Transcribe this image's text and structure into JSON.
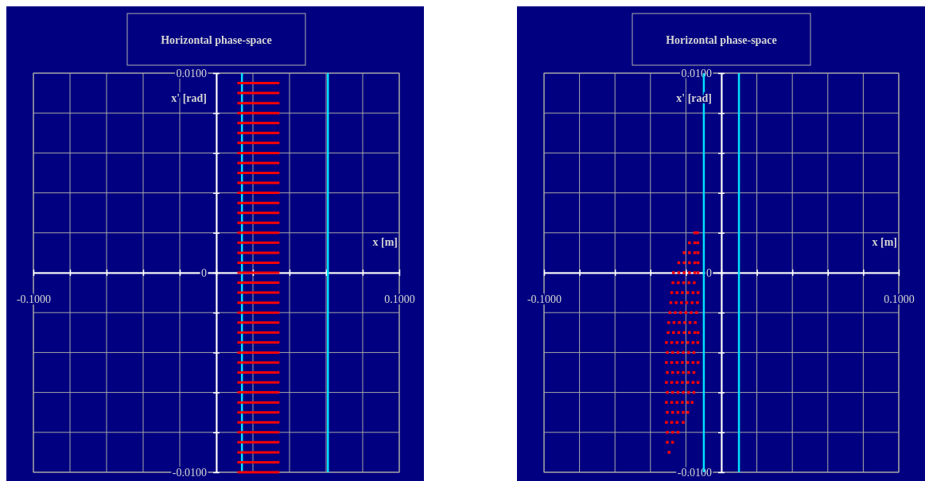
{
  "chart_data": [
    {
      "type": "line",
      "title": "Horizontal phase-space",
      "xlabel": "x [m]",
      "ylabel": "x' [rad]",
      "xlim": [
        -0.1,
        0.1
      ],
      "ylim": [
        -0.01,
        0.01
      ],
      "xticks": [
        {
          "value": -0.1,
          "label": "-0.1000"
        },
        {
          "value": -0.08,
          "label": null
        },
        {
          "value": -0.06,
          "label": null
        },
        {
          "value": -0.04,
          "label": null
        },
        {
          "value": -0.02,
          "label": null
        },
        {
          "value": 0,
          "label": null
        },
        {
          "value": 0.02,
          "label": null
        },
        {
          "value": 0.04,
          "label": null
        },
        {
          "value": 0.06,
          "label": null
        },
        {
          "value": 0.08,
          "label": null
        },
        {
          "value": 0.1,
          "label": "0.1000"
        }
      ],
      "yticks": [
        {
          "value": -0.01,
          "label": "-0.0100"
        },
        {
          "value": -0.008,
          "label": null
        },
        {
          "value": -0.006,
          "label": null
        },
        {
          "value": -0.004,
          "label": null
        },
        {
          "value": -0.002,
          "label": null
        },
        {
          "value": 0,
          "label": "0"
        },
        {
          "value": 0.002,
          "label": null
        },
        {
          "value": 0.004,
          "label": null
        },
        {
          "value": 0.006,
          "label": null
        },
        {
          "value": 0.008,
          "label": null
        },
        {
          "value": 0.01,
          "label": "0.0100"
        }
      ],
      "grid": true,
      "marker": "none",
      "line_style": "solid",
      "ref_lines": [
        {
          "axis": "x",
          "value": 0.014,
          "color": "#00e0ff"
        },
        {
          "axis": "x",
          "value": 0.061,
          "color": "#00e0ff"
        }
      ],
      "series": [
        {
          "color": "#ff0000",
          "x": [
            0.0115,
            0.0345
          ],
          "values": [
            0.0095,
            0.0095
          ]
        },
        {
          "color": "#ff0000",
          "x": [
            0.0115,
            0.0345
          ],
          "values": [
            0.009,
            0.009
          ]
        },
        {
          "color": "#ff0000",
          "x": [
            0.0115,
            0.0345
          ],
          "values": [
            0.0085,
            0.0085
          ]
        },
        {
          "color": "#ff0000",
          "x": [
            0.0115,
            0.0345
          ],
          "values": [
            0.008,
            0.008
          ]
        },
        {
          "color": "#ff0000",
          "x": [
            0.0115,
            0.0345
          ],
          "values": [
            0.0075,
            0.0075
          ]
        },
        {
          "color": "#ff0000",
          "x": [
            0.0115,
            0.0345
          ],
          "values": [
            0.007,
            0.007
          ]
        },
        {
          "color": "#ff0000",
          "x": [
            0.0115,
            0.0345
          ],
          "values": [
            0.0065,
            0.0065
          ]
        },
        {
          "color": "#ff0000",
          "x": [
            0.0115,
            0.0345
          ],
          "values": [
            0.006,
            0.006
          ]
        },
        {
          "color": "#ff0000",
          "x": [
            0.0115,
            0.0345
          ],
          "values": [
            0.0055,
            0.0055
          ]
        },
        {
          "color": "#ff0000",
          "x": [
            0.0115,
            0.0345
          ],
          "values": [
            0.005,
            0.005
          ]
        },
        {
          "color": "#ff0000",
          "x": [
            0.0115,
            0.0345
          ],
          "values": [
            0.0045,
            0.0045
          ]
        },
        {
          "color": "#ff0000",
          "x": [
            0.0115,
            0.0345
          ],
          "values": [
            0.004,
            0.004
          ]
        },
        {
          "color": "#ff0000",
          "x": [
            0.0115,
            0.0345
          ],
          "values": [
            0.0035,
            0.0035
          ]
        },
        {
          "color": "#ff0000",
          "x": [
            0.0115,
            0.0345
          ],
          "values": [
            0.003,
            0.003
          ]
        },
        {
          "color": "#ff0000",
          "x": [
            0.0115,
            0.0345
          ],
          "values": [
            0.0025,
            0.0025
          ]
        },
        {
          "color": "#ff0000",
          "x": [
            0.0115,
            0.0345
          ],
          "values": [
            0.002,
            0.002
          ]
        },
        {
          "color": "#ff0000",
          "x": [
            0.0115,
            0.0345
          ],
          "values": [
            0.0015,
            0.0015
          ]
        },
        {
          "color": "#ff0000",
          "x": [
            0.0115,
            0.0345
          ],
          "values": [
            0.001,
            0.001
          ]
        },
        {
          "color": "#ff0000",
          "x": [
            0.0115,
            0.0345
          ],
          "values": [
            0.0005,
            0.0005
          ]
        },
        {
          "color": "#ff0000",
          "x": [
            0.0115,
            0.0345
          ],
          "values": [
            0,
            0
          ]
        },
        {
          "color": "#ff0000",
          "x": [
            0.0115,
            0.0345
          ],
          "values": [
            -0.0005,
            -0.0005
          ]
        },
        {
          "color": "#ff0000",
          "x": [
            0.0115,
            0.0345
          ],
          "values": [
            -0.001,
            -0.001
          ]
        },
        {
          "color": "#ff0000",
          "x": [
            0.0115,
            0.0345
          ],
          "values": [
            -0.0015,
            -0.0015
          ]
        },
        {
          "color": "#ff0000",
          "x": [
            0.0115,
            0.0345
          ],
          "values": [
            -0.002,
            -0.002
          ]
        },
        {
          "color": "#ff0000",
          "x": [
            0.0115,
            0.0345
          ],
          "values": [
            -0.0025,
            -0.0025
          ]
        },
        {
          "color": "#ff0000",
          "x": [
            0.0115,
            0.0345
          ],
          "values": [
            -0.003,
            -0.003
          ]
        },
        {
          "color": "#ff0000",
          "x": [
            0.0115,
            0.0345
          ],
          "values": [
            -0.0035,
            -0.0035
          ]
        },
        {
          "color": "#ff0000",
          "x": [
            0.0115,
            0.0345
          ],
          "values": [
            -0.004,
            -0.004
          ]
        },
        {
          "color": "#ff0000",
          "x": [
            0.0115,
            0.0345
          ],
          "values": [
            -0.0045,
            -0.0045
          ]
        },
        {
          "color": "#ff0000",
          "x": [
            0.0115,
            0.0345
          ],
          "values": [
            -0.005,
            -0.005
          ]
        },
        {
          "color": "#ff0000",
          "x": [
            0.0115,
            0.0345
          ],
          "values": [
            -0.0055,
            -0.0055
          ]
        },
        {
          "color": "#ff0000",
          "x": [
            0.0115,
            0.0345
          ],
          "values": [
            -0.006,
            -0.006
          ]
        },
        {
          "color": "#ff0000",
          "x": [
            0.0115,
            0.0345
          ],
          "values": [
            -0.0065,
            -0.0065
          ]
        },
        {
          "color": "#ff0000",
          "x": [
            0.0115,
            0.0345
          ],
          "values": [
            -0.007,
            -0.007
          ]
        },
        {
          "color": "#ff0000",
          "x": [
            0.0115,
            0.0345
          ],
          "values": [
            -0.0075,
            -0.0075
          ]
        },
        {
          "color": "#ff0000",
          "x": [
            0.0115,
            0.0345
          ],
          "values": [
            -0.008,
            -0.008
          ]
        },
        {
          "color": "#ff0000",
          "x": [
            0.0115,
            0.0345
          ],
          "values": [
            -0.0085,
            -0.0085
          ]
        },
        {
          "color": "#ff0000",
          "x": [
            0.0115,
            0.0345
          ],
          "values": [
            -0.009,
            -0.009
          ]
        },
        {
          "color": "#ff0000",
          "x": [
            0.0115,
            0.0345
          ],
          "values": [
            -0.0095,
            -0.0095
          ]
        },
        {
          "color": "#ff0000",
          "x": [
            0.0115,
            0.0345
          ],
          "values": [
            -0.01,
            -0.01
          ]
        }
      ]
    },
    {
      "type": "scatter",
      "title": "Horizontal phase-space",
      "xlabel": "x [m]",
      "ylabel": "x' [rad]",
      "xlim": [
        -0.1,
        0.1
      ],
      "ylim": [
        -0.01,
        0.01
      ],
      "xticks": [
        {
          "value": -0.1,
          "label": "-0.1000"
        },
        {
          "value": -0.08,
          "label": null
        },
        {
          "value": -0.06,
          "label": null
        },
        {
          "value": -0.04,
          "label": null
        },
        {
          "value": -0.02,
          "label": null
        },
        {
          "value": 0,
          "label": null
        },
        {
          "value": 0.02,
          "label": null
        },
        {
          "value": 0.04,
          "label": null
        },
        {
          "value": 0.06,
          "label": null
        },
        {
          "value": 0.08,
          "label": null
        },
        {
          "value": 0.1,
          "label": "0.1000"
        }
      ],
      "yticks": [
        {
          "value": -0.01,
          "label": "-0.0100"
        },
        {
          "value": -0.008,
          "label": null
        },
        {
          "value": -0.006,
          "label": null
        },
        {
          "value": -0.004,
          "label": null
        },
        {
          "value": -0.002,
          "label": null
        },
        {
          "value": 0,
          "label": "0"
        },
        {
          "value": 0.002,
          "label": null
        },
        {
          "value": 0.004,
          "label": null
        },
        {
          "value": 0.006,
          "label": null
        },
        {
          "value": 0.008,
          "label": null
        },
        {
          "value": 0.01,
          "label": "0.0100"
        }
      ],
      "grid": true,
      "marker": "square",
      "ref_lines": [
        {
          "axis": "x",
          "value": -0.0099,
          "color": "#00e0ff"
        },
        {
          "axis": "x",
          "value": 0.0099,
          "color": "#00e0ff"
        }
      ],
      "series": [
        {
          "color": "#ff0000",
          "x": [
            -0.015,
            -0.0135,
            -0.018,
            -0.015,
            -0.0133,
            -0.021,
            -0.018,
            -0.015,
            -0.0132,
            -0.024,
            -0.021,
            -0.018,
            -0.015,
            -0.0132,
            -0.027,
            -0.024,
            -0.021,
            -0.018,
            -0.015,
            -0.0132,
            -0.0273,
            -0.0243,
            -0.0213,
            -0.0183,
            -0.0153,
            -0.028,
            -0.025,
            -0.022,
            -0.019,
            -0.016,
            -0.0132,
            -0.0285,
            -0.0255,
            -0.0225,
            -0.0195,
            -0.0165,
            -0.0135,
            -0.029,
            -0.026,
            -0.023,
            -0.02,
            -0.017,
            -0.014,
            -0.0297,
            -0.0267,
            -0.0237,
            -0.0207,
            -0.0177,
            -0.0147,
            -0.03,
            -0.027,
            -0.024,
            -0.021,
            -0.018,
            -0.015,
            -0.0132,
            -0.031,
            -0.028,
            -0.025,
            -0.022,
            -0.019,
            -0.016,
            -0.0133,
            -0.0305,
            -0.0275,
            -0.0245,
            -0.0215,
            -0.0185,
            -0.0155,
            -0.031,
            -0.028,
            -0.025,
            -0.022,
            -0.019,
            -0.016,
            -0.0132,
            -0.0305,
            -0.0275,
            -0.0245,
            -0.0215,
            -0.0185,
            -0.0155,
            -0.031,
            -0.028,
            -0.025,
            -0.022,
            -0.019,
            -0.016,
            -0.0132,
            -0.0305,
            -0.0275,
            -0.0245,
            -0.0215,
            -0.0185,
            -0.0155,
            -0.031,
            -0.028,
            -0.025,
            -0.022,
            -0.019,
            -0.0165,
            -0.0305,
            -0.0275,
            -0.0245,
            -0.0215,
            -0.019,
            -0.031,
            -0.028,
            -0.025,
            -0.0215,
            -0.0305,
            -0.0275,
            -0.0245,
            -0.0305,
            -0.0275,
            -0.0295
          ],
          "values": [
            0.002,
            0.002,
            0.0015,
            0.0015,
            0.0015,
            0.001,
            0.001,
            0.001,
            0.001,
            0.0005,
            0.0005,
            0.0005,
            0.0005,
            0.0005,
            0,
            0,
            0,
            0,
            0,
            0,
            -0.0005,
            -0.0005,
            -0.0005,
            -0.0005,
            -0.0005,
            -0.001,
            -0.001,
            -0.001,
            -0.001,
            -0.001,
            -0.001,
            -0.0015,
            -0.0015,
            -0.0015,
            -0.0015,
            -0.0015,
            -0.0015,
            -0.002,
            -0.002,
            -0.002,
            -0.002,
            -0.002,
            -0.002,
            -0.0025,
            -0.0025,
            -0.0025,
            -0.0025,
            -0.0025,
            -0.0025,
            -0.003,
            -0.003,
            -0.003,
            -0.003,
            -0.003,
            -0.003,
            -0.003,
            -0.0035,
            -0.0035,
            -0.0035,
            -0.0035,
            -0.0035,
            -0.0035,
            -0.0035,
            -0.004,
            -0.004,
            -0.004,
            -0.004,
            -0.004,
            -0.004,
            -0.0045,
            -0.0045,
            -0.0045,
            -0.0045,
            -0.0045,
            -0.0045,
            -0.0045,
            -0.005,
            -0.005,
            -0.005,
            -0.005,
            -0.005,
            -0.005,
            -0.0055,
            -0.0055,
            -0.0055,
            -0.0055,
            -0.0055,
            -0.0055,
            -0.0055,
            -0.006,
            -0.006,
            -0.006,
            -0.006,
            -0.006,
            -0.006,
            -0.0065,
            -0.0065,
            -0.0065,
            -0.0065,
            -0.0065,
            -0.0065,
            -0.007,
            -0.007,
            -0.007,
            -0.007,
            -0.007,
            -0.0075,
            -0.0075,
            -0.0075,
            -0.0075,
            -0.008,
            -0.008,
            -0.008,
            -0.0085,
            -0.0085,
            -0.009
          ]
        }
      ]
    }
  ]
}
